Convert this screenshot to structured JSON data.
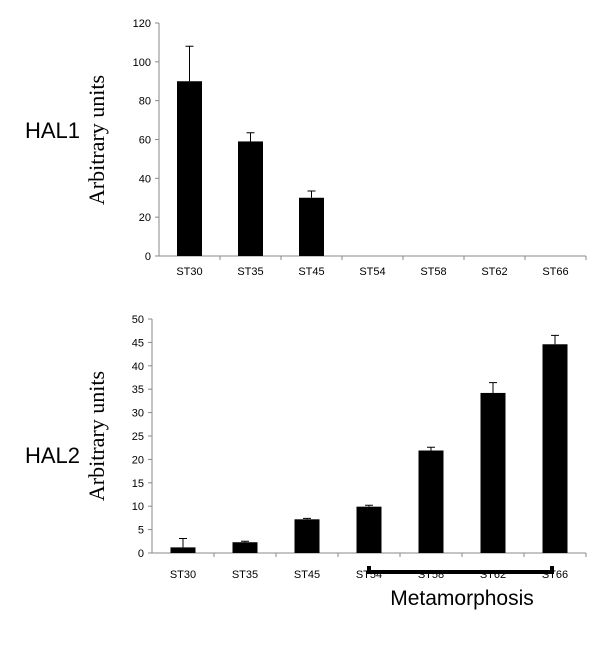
{
  "chart_data": [
    {
      "type": "bar",
      "panel_label": "HAL1",
      "ylabel": "Arbitrary units",
      "categories": [
        "ST30",
        "ST35",
        "ST45",
        "ST54",
        "ST58",
        "ST62",
        "ST66"
      ],
      "values": [
        90,
        59,
        30,
        0,
        0,
        0,
        0
      ],
      "errors": [
        18,
        4.5,
        3.5,
        0,
        0,
        0,
        0
      ],
      "ylim": [
        0,
        120
      ],
      "yticks": [
        0,
        20,
        40,
        60,
        80,
        100,
        120
      ],
      "bar_color": "#000000",
      "grid": false
    },
    {
      "type": "bar",
      "panel_label": "HAL2",
      "ylabel": "Arbitrary units",
      "categories": [
        "ST30",
        "ST35",
        "ST45",
        "ST54",
        "ST58",
        "ST62",
        "ST66"
      ],
      "values": [
        1.2,
        2.3,
        7.2,
        9.9,
        21.9,
        34.2,
        44.6
      ],
      "errors": [
        1.9,
        0.2,
        0.2,
        0.3,
        0.7,
        2.2,
        1.9
      ],
      "ylim": [
        0,
        50
      ],
      "yticks": [
        0,
        5,
        10,
        15,
        20,
        25,
        30,
        35,
        40,
        45,
        50
      ],
      "bar_color": "#000000",
      "grid": false,
      "annotation": {
        "label": "Metamorphosis",
        "span": [
          "ST54",
          "ST66"
        ]
      }
    }
  ]
}
